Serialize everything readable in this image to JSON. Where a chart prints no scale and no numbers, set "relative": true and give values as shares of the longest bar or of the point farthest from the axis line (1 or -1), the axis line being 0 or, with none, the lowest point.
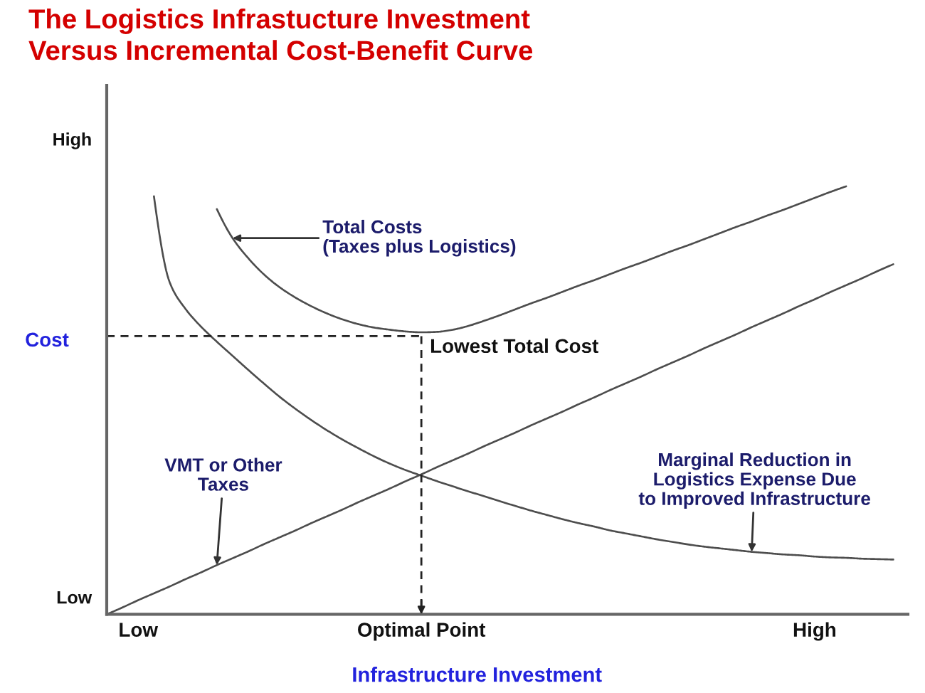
{
  "chart_data": {
    "type": "line",
    "title": "The Logistics Infrastucture Investment\nVersus Incremental Cost-Benefit Curve",
    "xlabel": "Infrastructure Investment",
    "ylabel": "Cost",
    "relative": true,
    "categories": [
      null,
      null,
      "Low",
      null,
      null,
      null,
      null,
      null,
      null,
      null,
      null,
      null,
      null,
      null,
      null,
      null,
      null,
      null,
      null,
      null,
      "Optimal Point",
      null,
      null,
      null,
      null,
      null,
      null,
      null,
      null,
      null,
      null,
      null,
      null,
      null,
      null,
      null,
      null,
      null,
      null,
      null,
      null,
      null,
      null,
      null,
      null,
      "High",
      null,
      null,
      null,
      null,
      null
    ],
    "series": [
      {
        "name": "Total Costs\n(Taxes plus Logistics)",
        "color": "#4d4d4d",
        "values": [
          null,
          null,
          null,
          null,
          null,
          null,
          null,
          0.947,
          0.879,
          0.832,
          0.794,
          0.764,
          0.74,
          0.72,
          0.703,
          0.689,
          0.678,
          0.67,
          0.665,
          0.661,
          0.659,
          0.66,
          0.665,
          0.674,
          0.686,
          0.699,
          0.713,
          0.727,
          0.74,
          0.754,
          0.768,
          0.781,
          0.795,
          0.809,
          0.822,
          0.836,
          0.85,
          0.863,
          0.877,
          0.891,
          0.905,
          0.918,
          0.932,
          0.945,
          0.959,
          0.973,
          0.987,
          1.0,
          null,
          null,
          null
        ]
      },
      {
        "name": "Marginal Reduction in\nLogistics Expense Due\nto Improved Infrastructure",
        "color": "#4d4d4d",
        "values": [
          null,
          null,
          null,
          0.977,
          0.776,
          0.714,
          0.672,
          0.637,
          0.604,
          0.571,
          0.539,
          0.508,
          0.48,
          0.454,
          0.43,
          0.408,
          0.388,
          0.369,
          0.352,
          0.337,
          0.324,
          0.311,
          0.299,
          0.287,
          0.276,
          0.264,
          0.253,
          0.242,
          0.232,
          0.222,
          0.213,
          0.205,
          0.196,
          0.189,
          0.182,
          0.175,
          0.169,
          0.163,
          0.158,
          0.154,
          0.15,
          0.146,
          0.143,
          0.14,
          0.138,
          0.135,
          0.133,
          0.132,
          0.13,
          0.129,
          0.128
        ]
      },
      {
        "name": "VMT or Other\nTaxes",
        "color": "#4d4d4d",
        "values": [
          0.0,
          0.016,
          0.033,
          0.049,
          0.065,
          0.082,
          0.098,
          0.115,
          0.131,
          0.147,
          0.164,
          0.18,
          0.196,
          0.213,
          0.229,
          0.245,
          0.262,
          0.278,
          0.294,
          0.311,
          0.327,
          0.344,
          0.36,
          0.376,
          0.393,
          0.409,
          0.425,
          0.442,
          0.458,
          0.474,
          0.491,
          0.507,
          0.524,
          0.54,
          0.556,
          0.573,
          0.589,
          0.605,
          0.622,
          0.638,
          0.654,
          0.671,
          0.687,
          0.703,
          0.72,
          0.736,
          0.753,
          0.769,
          0.785,
          0.802,
          0.818
        ]
      }
    ],
    "ref_lines": [
      {
        "axis": "x",
        "value": "Optimal Point",
        "line_style": "dashed",
        "color": "#222222"
      },
      {
        "axis": "y",
        "value": 0.65,
        "line_style": "dashed",
        "color": "#222222"
      }
    ],
    "annotations": [
      "High",
      "Low",
      {
        "text": "Lowest Total Cost",
        "x": "Optimal Point",
        "y": 0.66
      }
    ]
  }
}
